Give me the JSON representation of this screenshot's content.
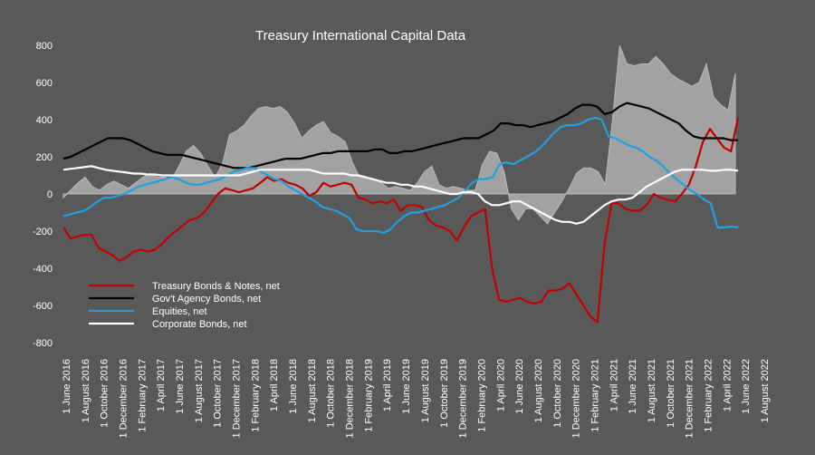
{
  "chart_data": {
    "type": "line",
    "title": "Treasury International Capital Data",
    "xlabel": "",
    "ylabel": "",
    "ylim": [
      -800,
      800
    ],
    "y_ticks": [
      800,
      600,
      400,
      200,
      0,
      -200,
      -400,
      -600,
      -800
    ],
    "x_tick_labels": [
      "1 June 2016",
      "1 August 2016",
      "1 October 2016",
      "1 December 2016",
      "1 February 2017",
      "1 April 2017",
      "1 June 2017",
      "1 August 2017",
      "1 October 2017",
      "1 December 2017",
      "1 February 2018",
      "1 April 2018",
      "1 June 2018",
      "1 August 2018",
      "1 October 2018",
      "1 December 2018",
      "1 February 2019",
      "1 April 2019",
      "1 June 2019",
      "1 August 2019",
      "1 October 2019",
      "1 December 2019",
      "1 February 2020",
      "1 April 2020",
      "1 June 2020",
      "1 August 2020",
      "1 October 2020",
      "1 December 2020",
      "1 February 2021",
      "1 April 2021",
      "1 June 2021",
      "1 August 2021",
      "1 October 2021",
      "1 December 2021",
      "1 February 2022",
      "1 April 2022",
      "1 June 2022",
      "1 August 2022"
    ],
    "grid": false,
    "legend_position": "bottom-left",
    "area": {
      "color": "#a6a6a6",
      "values": [
        -20,
        20,
        60,
        90,
        40,
        20,
        50,
        70,
        50,
        30,
        60,
        90,
        110,
        90,
        90,
        80,
        150,
        230,
        260,
        220,
        150,
        90,
        160,
        320,
        340,
        370,
        420,
        460,
        470,
        460,
        470,
        440,
        380,
        300,
        340,
        370,
        390,
        330,
        310,
        280,
        170,
        90,
        80,
        80,
        60,
        30,
        40,
        30,
        20,
        60,
        120,
        150,
        50,
        30,
        40,
        30,
        20,
        20,
        160,
        230,
        220,
        120,
        -80,
        -140,
        -80,
        -80,
        -120,
        -160,
        -100,
        -40,
        30,
        110,
        140,
        140,
        120,
        50,
        400,
        800,
        700,
        690,
        700,
        700,
        740,
        700,
        650,
        620,
        600,
        580,
        600,
        700,
        520,
        480,
        450,
        650
      ]
    },
    "series": [
      {
        "name": "Treasury Bonds & Notes, net",
        "color": "#c00000",
        "values": [
          -180,
          -240,
          -230,
          -220,
          -220,
          -290,
          -310,
          -330,
          -360,
          -340,
          -310,
          -300,
          -310,
          -300,
          -270,
          -230,
          -200,
          -170,
          -140,
          -130,
          -100,
          -50,
          0,
          30,
          20,
          10,
          20,
          30,
          60,
          90,
          70,
          80,
          60,
          50,
          30,
          -10,
          10,
          60,
          40,
          50,
          60,
          50,
          -20,
          -30,
          -50,
          -40,
          -50,
          -30,
          -90,
          -60,
          -60,
          -70,
          -140,
          -170,
          -180,
          -200,
          -250,
          -180,
          -120,
          -100,
          -80,
          -400,
          -570,
          -580,
          -570,
          -560,
          -580,
          -590,
          -580,
          -520,
          -520,
          -510,
          -480,
          -540,
          -600,
          -660,
          -690,
          -270,
          -50,
          -50,
          -80,
          -90,
          -90,
          -60,
          0,
          -20,
          -30,
          -40,
          0,
          50,
          150,
          280,
          350,
          300,
          250,
          230,
          410
        ]
      },
      {
        "name": "Gov't Agency Bonds, net",
        "color": "#000000",
        "values": [
          190,
          200,
          220,
          240,
          260,
          280,
          300,
          300,
          300,
          290,
          270,
          250,
          230,
          220,
          210,
          210,
          210,
          200,
          190,
          180,
          170,
          160,
          150,
          140,
          140,
          140,
          150,
          160,
          170,
          180,
          190,
          190,
          190,
          200,
          210,
          220,
          220,
          230,
          230,
          230,
          230,
          230,
          240,
          240,
          220,
          220,
          230,
          230,
          240,
          250,
          260,
          270,
          280,
          290,
          300,
          300,
          300,
          320,
          340,
          380,
          380,
          370,
          370,
          360,
          370,
          380,
          390,
          410,
          430,
          460,
          480,
          480,
          470,
          430,
          440,
          470,
          490,
          480,
          470,
          460,
          440,
          420,
          400,
          380,
          340,
          310,
          300,
          300,
          300,
          300,
          290,
          290
        ]
      },
      {
        "name": "Equities, net",
        "color": "#1fa0e0",
        "values": [
          -120,
          -110,
          -100,
          -90,
          -70,
          -40,
          -20,
          -20,
          -10,
          0,
          20,
          40,
          50,
          60,
          70,
          80,
          90,
          80,
          60,
          50,
          50,
          60,
          70,
          80,
          100,
          120,
          130,
          140,
          140,
          120,
          100,
          80,
          70,
          40,
          20,
          0,
          -20,
          -40,
          -70,
          -80,
          -90,
          -110,
          -130,
          -190,
          -200,
          -200,
          -200,
          -210,
          -190,
          -150,
          -120,
          -100,
          -100,
          -90,
          -80,
          -70,
          -60,
          -40,
          -20,
          20,
          60,
          80,
          80,
          90,
          160,
          170,
          160,
          180,
          200,
          220,
          250,
          290,
          330,
          360,
          370,
          370,
          380,
          400,
          410,
          400,
          310,
          300,
          280,
          260,
          250,
          230,
          200,
          180,
          150,
          110,
          80,
          50,
          20,
          0,
          -30,
          -50,
          -180,
          -180,
          -175,
          -180
        ]
      },
      {
        "name": "Corporate Bonds, net",
        "color": "#ffffff",
        "values": [
          130,
          135,
          140,
          145,
          150,
          140,
          130,
          125,
          120,
          115,
          110,
          110,
          105,
          105,
          100,
          100,
          100,
          100,
          100,
          100,
          100,
          100,
          100,
          100,
          100,
          100,
          110,
          120,
          130,
          130,
          130,
          130,
          130,
          130,
          130,
          130,
          120,
          110,
          110,
          110,
          110,
          100,
          100,
          90,
          80,
          70,
          60,
          60,
          50,
          50,
          40,
          40,
          30,
          20,
          10,
          0,
          0,
          10,
          10,
          0,
          -40,
          -60,
          -60,
          -50,
          -40,
          -40,
          -60,
          -80,
          -100,
          -120,
          -140,
          -150,
          -150,
          -160,
          -150,
          -120,
          -90,
          -60,
          -40,
          -30,
          -30,
          -20,
          10,
          40,
          60,
          80,
          100,
          120,
          130,
          130,
          130,
          130,
          125,
          125,
          130,
          130,
          125
        ]
      }
    ]
  }
}
